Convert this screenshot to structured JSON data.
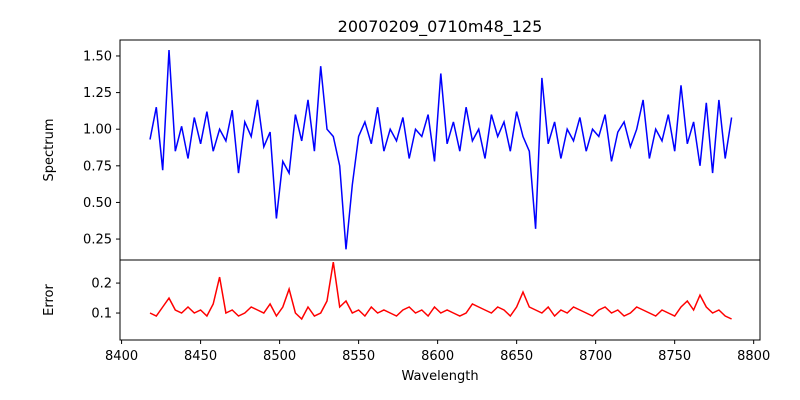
{
  "chart_data": {
    "type": "line",
    "title": "20070209_0710m48_125",
    "xlabel": "Wavelength",
    "xlim": [
      8399,
      8804
    ],
    "xticks": [
      8400,
      8450,
      8500,
      8550,
      8600,
      8650,
      8700,
      8750,
      8800
    ],
    "x_start": 8418,
    "x_step": 4,
    "panels": [
      {
        "name": "Spectrum",
        "ylabel": "Spectrum",
        "color": "#0000ff",
        "ylim": [
          0.107,
          1.609
        ],
        "yticks": [
          "0.25",
          "0.50",
          "0.75",
          "1.00",
          "1.25",
          "1.50"
        ],
        "values": [
          0.93,
          1.15,
          0.72,
          1.54,
          0.85,
          1.02,
          0.8,
          1.08,
          0.9,
          1.12,
          0.85,
          1.0,
          0.92,
          1.13,
          0.7,
          1.05,
          0.95,
          1.2,
          0.88,
          0.98,
          0.39,
          0.78,
          0.7,
          1.1,
          0.92,
          1.2,
          0.85,
          1.43,
          1.0,
          0.95,
          0.75,
          0.18,
          0.62,
          0.95,
          1.05,
          0.9,
          1.15,
          0.85,
          1.0,
          0.92,
          1.08,
          0.8,
          1.0,
          0.95,
          1.1,
          0.78,
          1.38,
          0.9,
          1.05,
          0.85,
          1.15,
          0.92,
          1.0,
          0.8,
          1.1,
          0.95,
          1.05,
          0.85,
          1.12,
          0.95,
          0.85,
          0.32,
          1.35,
          0.9,
          1.05,
          0.8,
          1.0,
          0.92,
          1.08,
          0.85,
          1.0,
          0.95,
          1.1,
          0.78,
          0.98,
          1.05,
          0.88,
          1.0,
          1.2,
          0.8,
          1.0,
          0.92,
          1.1,
          0.85,
          1.3,
          0.9,
          1.05,
          0.75,
          1.18,
          0.7,
          1.2,
          0.8,
          1.08
        ]
      },
      {
        "name": "Error",
        "ylabel": "Error",
        "color": "#ff0000",
        "ylim": [
          0.01,
          0.277
        ],
        "yticks": [
          "0.1",
          "0.2"
        ],
        "values": [
          0.1,
          0.09,
          0.12,
          0.15,
          0.11,
          0.1,
          0.12,
          0.1,
          0.11,
          0.09,
          0.13,
          0.22,
          0.1,
          0.11,
          0.09,
          0.1,
          0.12,
          0.11,
          0.1,
          0.13,
          0.09,
          0.12,
          0.18,
          0.1,
          0.08,
          0.12,
          0.09,
          0.1,
          0.14,
          0.27,
          0.12,
          0.14,
          0.1,
          0.11,
          0.09,
          0.12,
          0.1,
          0.11,
          0.1,
          0.09,
          0.11,
          0.12,
          0.1,
          0.11,
          0.09,
          0.12,
          0.1,
          0.11,
          0.1,
          0.09,
          0.1,
          0.13,
          0.12,
          0.11,
          0.1,
          0.12,
          0.11,
          0.09,
          0.12,
          0.17,
          0.12,
          0.11,
          0.1,
          0.12,
          0.09,
          0.11,
          0.1,
          0.12,
          0.11,
          0.1,
          0.09,
          0.11,
          0.12,
          0.1,
          0.11,
          0.09,
          0.1,
          0.12,
          0.11,
          0.1,
          0.09,
          0.11,
          0.1,
          0.09,
          0.12,
          0.14,
          0.11,
          0.16,
          0.12,
          0.1,
          0.11,
          0.09,
          0.08
        ]
      }
    ]
  }
}
